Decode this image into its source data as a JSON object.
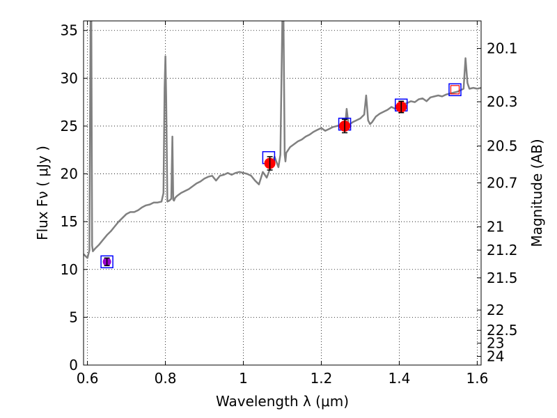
{
  "chart_data": {
    "type": "line",
    "xlabel": "Wavelength  λ (μm)",
    "ylabel": "Flux  Fν  ( μJy )",
    "ylabel_right": "Magnitude (AB)",
    "xlim": [
      0.59,
      1.61
    ],
    "ylim": [
      0,
      36
    ],
    "grid": true,
    "x_ticks": [
      0.6,
      0.8,
      1.0,
      1.2,
      1.4,
      1.6
    ],
    "x_tick_labels": [
      "0.6",
      "0.8",
      "1",
      "1.2",
      "1.4",
      "1.6"
    ],
    "y_ticks": [
      0,
      5,
      10,
      15,
      20,
      25,
      30,
      35
    ],
    "y_tick_labels": [
      "0",
      "5",
      "10",
      "15",
      "20",
      "25",
      "30",
      "35"
    ],
    "mag_ticks": [
      20.1,
      20.3,
      20.5,
      20.7,
      21,
      21.2,
      21.5,
      22,
      22.5,
      23,
      24
    ],
    "mag_tick_labels": [
      "20.1",
      "20.3",
      "20.5",
      "20.7",
      "21",
      "21.2",
      "21.5",
      "22",
      "22.5",
      "23",
      "24"
    ],
    "colors": {
      "spectrum": "#808080",
      "observed": "#ff0000",
      "observed_first": "#9900cc",
      "model_box": "#0000ff",
      "model_box_last_inner": "#ff0000",
      "errorbar": "#000000"
    },
    "spectrum": {
      "x": [
        0.59,
        0.6,
        0.605,
        0.608,
        0.61,
        0.612,
        0.614,
        0.62,
        0.63,
        0.64,
        0.65,
        0.66,
        0.67,
        0.68,
        0.69,
        0.7,
        0.71,
        0.72,
        0.73,
        0.74,
        0.75,
        0.76,
        0.77,
        0.78,
        0.79,
        0.795,
        0.798,
        0.8,
        0.802,
        0.805,
        0.81,
        0.815,
        0.818,
        0.82,
        0.822,
        0.825,
        0.83,
        0.84,
        0.85,
        0.86,
        0.87,
        0.88,
        0.89,
        0.9,
        0.91,
        0.92,
        0.93,
        0.94,
        0.95,
        0.96,
        0.97,
        0.98,
        0.99,
        1.0,
        1.01,
        1.02,
        1.03,
        1.04,
        1.05,
        1.06,
        1.07,
        1.08,
        1.09,
        1.095,
        1.1,
        1.103,
        1.106,
        1.108,
        1.11,
        1.115,
        1.12,
        1.13,
        1.14,
        1.15,
        1.16,
        1.17,
        1.18,
        1.19,
        1.2,
        1.21,
        1.22,
        1.23,
        1.24,
        1.25,
        1.26,
        1.265,
        1.27,
        1.28,
        1.29,
        1.3,
        1.31,
        1.315,
        1.32,
        1.325,
        1.33,
        1.34,
        1.35,
        1.36,
        1.37,
        1.38,
        1.39,
        1.4,
        1.41,
        1.42,
        1.43,
        1.44,
        1.45,
        1.46,
        1.47,
        1.48,
        1.49,
        1.5,
        1.51,
        1.52,
        1.53,
        1.54,
        1.55,
        1.56,
        1.565,
        1.57,
        1.575,
        1.58,
        1.59,
        1.6,
        1.61
      ],
      "y": [
        11.6,
        11.2,
        12.0,
        36.0,
        36.0,
        12.5,
        11.9,
        12.2,
        12.6,
        13.1,
        13.6,
        14.0,
        14.5,
        15.0,
        15.4,
        15.8,
        16.0,
        16.0,
        16.2,
        16.5,
        16.7,
        16.8,
        17.0,
        17.0,
        17.1,
        18.0,
        29.0,
        32.3,
        28.0,
        17.1,
        17.2,
        17.4,
        23.9,
        17.3,
        17.2,
        17.5,
        17.7,
        18.0,
        18.2,
        18.4,
        18.7,
        19.0,
        19.2,
        19.5,
        19.7,
        19.8,
        19.3,
        19.8,
        19.9,
        20.1,
        19.9,
        20.1,
        20.2,
        20.1,
        20.0,
        19.8,
        19.3,
        18.9,
        20.2,
        19.6,
        20.7,
        21.8,
        20.7,
        22.0,
        36.0,
        36.0,
        22.0,
        21.3,
        22.2,
        22.5,
        22.8,
        23.1,
        23.4,
        23.6,
        23.9,
        24.1,
        24.4,
        24.6,
        24.8,
        24.5,
        24.7,
        24.9,
        25.0,
        25.1,
        24.5,
        26.8,
        25.1,
        25.4,
        25.6,
        25.8,
        26.2,
        28.2,
        25.6,
        25.2,
        25.4,
        26.0,
        26.3,
        26.5,
        26.7,
        27.0,
        26.8,
        27.1,
        27.3,
        27.4,
        27.6,
        27.5,
        27.8,
        27.9,
        27.6,
        28.0,
        28.1,
        28.2,
        28.1,
        28.3,
        28.4,
        28.5,
        28.6,
        28.8,
        28.9,
        32.1,
        29.5,
        28.9,
        29.0,
        28.9,
        29.0
      ],
      "note_clipped_at": 36
    },
    "observed_points": [
      {
        "x": 0.65,
        "y": 10.8,
        "yerr": 0.4
      },
      {
        "x": 1.068,
        "y": 21.1,
        "yerr": 0.7
      },
      {
        "x": 1.26,
        "y": 25.0,
        "yerr": 0.7
      },
      {
        "x": 1.405,
        "y": 27.0,
        "yerr": 0.6
      }
    ],
    "model_boxes": [
      {
        "x": 0.65,
        "y": 10.8
      },
      {
        "x": 1.065,
        "y": 21.7
      },
      {
        "x": 1.26,
        "y": 25.2
      },
      {
        "x": 1.405,
        "y": 27.2
      },
      {
        "x": 1.543,
        "y": 28.8
      }
    ]
  }
}
